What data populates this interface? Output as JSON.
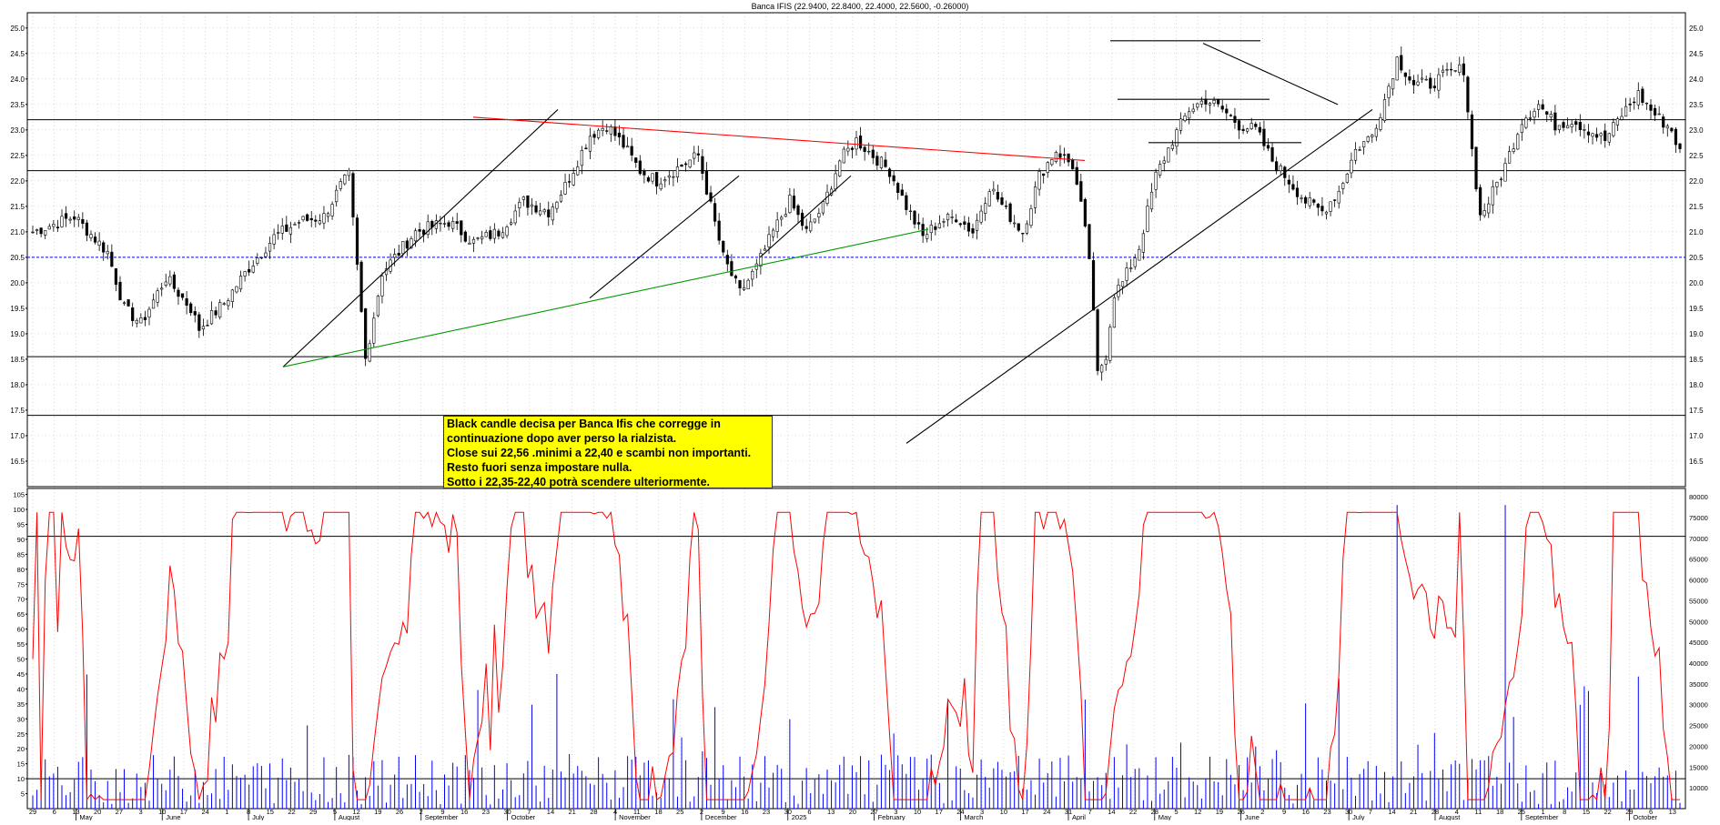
{
  "title": "Banca IFIS (22.9400, 22.8400, 22.4000, 22.5600, -0.26000)",
  "annotation_lines": [
    "Black candle decisa per Banca Ifis che corregge in",
    "continuazione dopo aver perso la rialzista.",
    "Close sui 22,56 .minimi a 22,40 e scambi non importanti.",
    "Resto fuori senza impostare nulla.",
    "Sotto i 22,35-22,40  potrà scendere ulteriormente."
  ],
  "colors": {
    "grid": "#bdbdbd",
    "candle": "#000000",
    "support": "#000000",
    "dotted_level": "#0000ff",
    "red_trend": "#ff0000",
    "green_trend": "#009900",
    "oscillator": "#ff0000",
    "volume": "#0000ff",
    "note_bg": "#ffff00"
  },
  "chart_data": [
    {
      "type": "candlestick",
      "name": "price",
      "ylim": [
        16.0,
        25.3
      ],
      "y_ticks": [
        "16.5",
        "17.0",
        "17.5",
        "18.0",
        "18.5",
        "19.0",
        "19.5",
        "20.0",
        "20.5",
        "21.0",
        "21.5",
        "22.0",
        "22.5",
        "23.0",
        "23.5",
        "24.0",
        "24.5",
        "25.0"
      ],
      "x_ticks_days": [
        "29",
        "6",
        "13",
        "20",
        "27",
        "3",
        "10",
        "17",
        "24",
        "1",
        "8",
        "15",
        "22",
        "29",
        "5",
        "12",
        "19",
        "26",
        "2",
        "9",
        "16",
        "23",
        "30",
        "7",
        "14",
        "21",
        "28",
        "4",
        "11",
        "18",
        "25",
        "2",
        "9",
        "16",
        "23",
        "30",
        "6",
        "13",
        "20",
        "27",
        "3",
        "10",
        "17",
        "24",
        "3",
        "10",
        "17",
        "24",
        "31",
        "7",
        "14",
        "22",
        "28",
        "5",
        "12",
        "19",
        "26",
        "2",
        "9",
        "16",
        "23",
        "30",
        "7",
        "14",
        "21",
        "28",
        "4",
        "11",
        "18",
        "25",
        "1",
        "8",
        "15",
        "22",
        "29",
        "6",
        "13"
      ],
      "x_ticks_months": [
        "May",
        "June",
        "July",
        "August",
        "September",
        "October",
        "November",
        "December",
        "2025",
        "February",
        "March",
        "April",
        "May",
        "June",
        "July",
        "August",
        "September",
        "October"
      ],
      "horizontal_levels": [
        23.2,
        22.2,
        18.55,
        17.4
      ],
      "dotted_level": 20.5,
      "anchors": [
        [
          0,
          21.0
        ],
        [
          10,
          21.3
        ],
        [
          18,
          20.6
        ],
        [
          22,
          19.5
        ],
        [
          26,
          19.2
        ],
        [
          32,
          20.1
        ],
        [
          38,
          19.5
        ],
        [
          40,
          19.1
        ],
        [
          46,
          19.6
        ],
        [
          52,
          20.3
        ],
        [
          58,
          20.9
        ],
        [
          64,
          21.2
        ],
        [
          70,
          21.3
        ],
        [
          74,
          21.9
        ],
        [
          76,
          22.1
        ],
        [
          78,
          20.3
        ],
        [
          80,
          18.5
        ],
        [
          84,
          20.2
        ],
        [
          92,
          21.0
        ],
        [
          100,
          21.2
        ],
        [
          106,
          20.8
        ],
        [
          112,
          21.0
        ],
        [
          118,
          21.6
        ],
        [
          124,
          21.4
        ],
        [
          128,
          21.9
        ],
        [
          134,
          22.9
        ],
        [
          138,
          23.1
        ],
        [
          142,
          22.7
        ],
        [
          146,
          22.2
        ],
        [
          150,
          22.0
        ],
        [
          156,
          22.3
        ],
        [
          160,
          22.5
        ],
        [
          163,
          21.5
        ],
        [
          166,
          20.5
        ],
        [
          170,
          19.8
        ],
        [
          174,
          20.3
        ],
        [
          178,
          21.0
        ],
        [
          182,
          21.6
        ],
        [
          186,
          21.0
        ],
        [
          190,
          21.5
        ],
        [
          194,
          22.4
        ],
        [
          198,
          22.8
        ],
        [
          202,
          22.5
        ],
        [
          206,
          22.2
        ],
        [
          210,
          21.5
        ],
        [
          214,
          20.9
        ],
        [
          218,
          21.2
        ],
        [
          222,
          21.3
        ],
        [
          226,
          21.0
        ],
        [
          230,
          21.9
        ],
        [
          234,
          21.4
        ],
        [
          238,
          21.0
        ],
        [
          242,
          22.1
        ],
        [
          246,
          22.6
        ],
        [
          250,
          22.3
        ],
        [
          252,
          21.5
        ],
        [
          254,
          20.5
        ],
        [
          256,
          18.2
        ],
        [
          258,
          18.6
        ],
        [
          260,
          19.8
        ],
        [
          262,
          20.0
        ],
        [
          266,
          20.7
        ],
        [
          270,
          22.1
        ],
        [
          274,
          22.8
        ],
        [
          278,
          23.4
        ],
        [
          282,
          23.6
        ],
        [
          286,
          23.4
        ],
        [
          290,
          23.1
        ],
        [
          294,
          23.0
        ],
        [
          298,
          22.4
        ],
        [
          302,
          22.0
        ],
        [
          306,
          21.6
        ],
        [
          310,
          21.4
        ],
        [
          314,
          21.8
        ],
        [
          318,
          22.6
        ],
        [
          322,
          22.9
        ],
        [
          325,
          23.6
        ],
        [
          328,
          24.4
        ],
        [
          332,
          23.9
        ],
        [
          336,
          23.9
        ],
        [
          340,
          24.1
        ],
        [
          344,
          24.2
        ],
        [
          346,
          22.6
        ],
        [
          348,
          21.3
        ],
        [
          350,
          21.6
        ],
        [
          354,
          22.3
        ],
        [
          358,
          23.2
        ],
        [
          362,
          23.5
        ],
        [
          366,
          23.1
        ],
        [
          370,
          23.2
        ],
        [
          374,
          23.0
        ],
        [
          378,
          22.8
        ],
        [
          382,
          23.3
        ],
        [
          386,
          23.7
        ],
        [
          390,
          23.3
        ],
        [
          394,
          23.0
        ],
        [
          396,
          22.56
        ]
      ],
      "n_bars": 397
    },
    {
      "type": "line+bar",
      "name": "oscillator",
      "left_ticks": [
        "5",
        "10",
        "15",
        "20",
        "25",
        "30",
        "35",
        "40",
        "45",
        "50",
        "55",
        "60",
        "65",
        "70",
        "75",
        "80",
        "85",
        "90",
        "95",
        "100",
        "105"
      ],
      "right_ticks": [
        "10000",
        "15000",
        "20000",
        "25000",
        "30000",
        "35000",
        "40000",
        "45000",
        "50000",
        "55000",
        "60000",
        "65000",
        "70000",
        "75000",
        "80000"
      ],
      "left_range": [
        0,
        107
      ],
      "right_range": [
        5000,
        82000
      ],
      "reference_levels": [
        91,
        10
      ]
    }
  ]
}
